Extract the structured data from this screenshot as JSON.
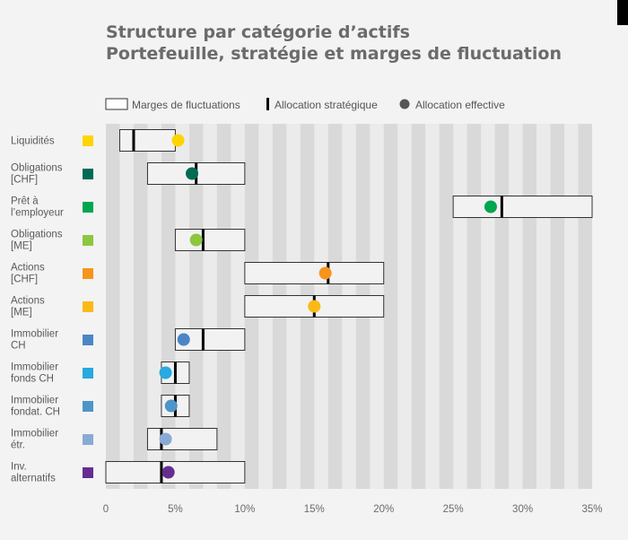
{
  "chart_data": {
    "type": "range-dot",
    "title_line1": "Structure par catégorie d’actifs",
    "title_line2": "Portefeuille, stratégie et marges de fluctuation",
    "legend": {
      "range_label": "Marges de fluctuations",
      "strategic_label": "Allocation stratégique",
      "effective_label": "Allocation effective"
    },
    "x_range": [
      0,
      35
    ],
    "ticks": [
      0,
      5,
      10,
      15,
      20,
      25,
      30,
      35
    ],
    "tick_labels": [
      "0",
      "5%",
      "10%",
      "15%",
      "20%",
      "25%",
      "30%",
      "35%"
    ],
    "grid": "alternating vertical stripes (1% each)",
    "legend_position": "top-left",
    "categories": [
      {
        "label": [
          "Liquidités"
        ],
        "color": "#ffd400",
        "min": 1,
        "max": 5,
        "strategic": 2,
        "effective": 5.2
      },
      {
        "label": [
          "Obligations",
          "[CHF]"
        ],
        "color": "#006b54",
        "min": 3,
        "max": 10,
        "strategic": 6.5,
        "effective": 6.2
      },
      {
        "label": [
          "Prêt à",
          "l’employeur"
        ],
        "color": "#00a650",
        "min": 25,
        "max": 35,
        "strategic": 28.5,
        "effective": 27.7
      },
      {
        "label": [
          "Obligations",
          "[ME]"
        ],
        "color": "#8dc63f",
        "min": 5,
        "max": 10,
        "strategic": 7,
        "effective": 6.5
      },
      {
        "label": [
          "Actions",
          "[CHF]"
        ],
        "color": "#f7941d",
        "min": 10,
        "max": 20,
        "strategic": 16,
        "effective": 15.8
      },
      {
        "label": [
          "Actions",
          "[ME]"
        ],
        "color": "#fbb817",
        "min": 10,
        "max": 20,
        "strategic": 15,
        "effective": 15
      },
      {
        "label": [
          "Immobilier",
          "CH"
        ],
        "color": "#4a86c5",
        "min": 5,
        "max": 10,
        "strategic": 7,
        "effective": 5.6
      },
      {
        "label": [
          "Immobilier",
          "fonds CH"
        ],
        "color": "#27a9e1",
        "min": 4,
        "max": 6,
        "strategic": 5,
        "effective": 4.3
      },
      {
        "label": [
          "Immobilier",
          "fondat. CH"
        ],
        "color": "#4f95c8",
        "min": 4,
        "max": 6,
        "strategic": 5,
        "effective": 4.7
      },
      {
        "label": [
          "Immobilier",
          "étr."
        ],
        "color": "#8aaad6",
        "min": 3,
        "max": 8,
        "strategic": 4,
        "effective": 4.3
      },
      {
        "label": [
          "Inv.",
          "alternatifs"
        ],
        "color": "#662d91",
        "min": 0,
        "max": 10,
        "strategic": 4,
        "effective": 4.5
      }
    ]
  }
}
